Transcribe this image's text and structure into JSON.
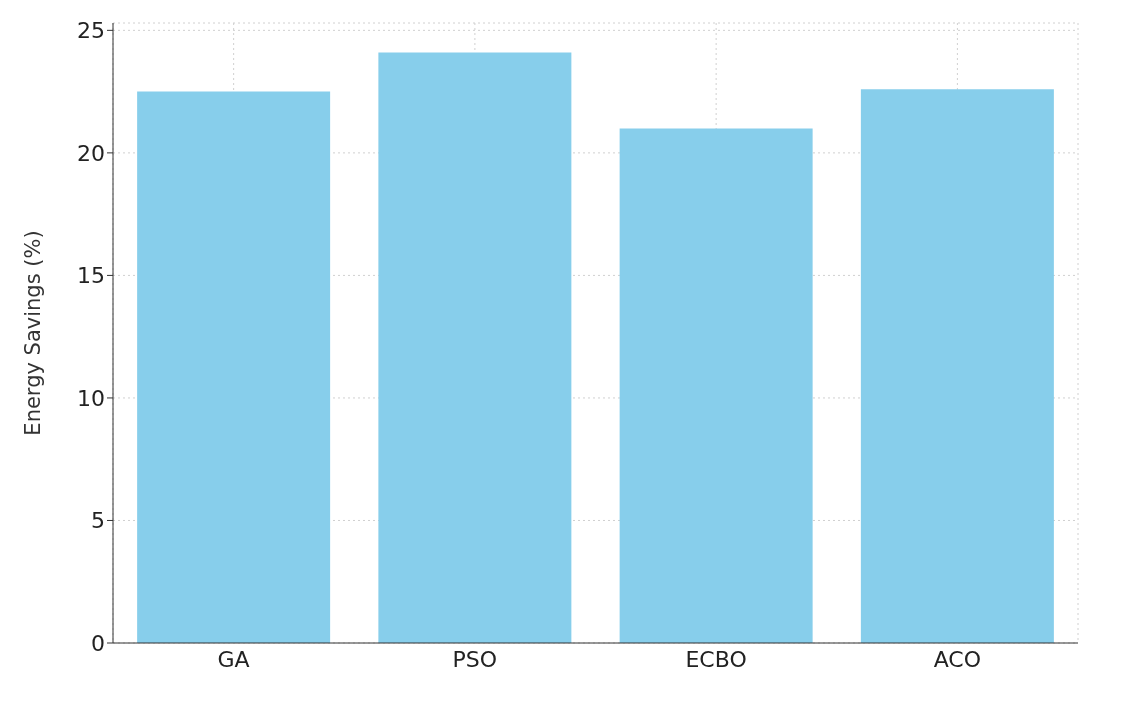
{
  "chart_data": {
    "type": "bar",
    "ylabel": "Energy Savings (%)",
    "categories": [
      "GA",
      "PSO",
      "ECBO",
      "ACO"
    ],
    "values": [
      22.5,
      24.1,
      21.0,
      22.6
    ],
    "color": "#87ceeb",
    "ylim": [
      0,
      25.3
    ],
    "yticks": [
      0,
      5,
      10,
      15,
      20,
      25
    ],
    "grid": true
  }
}
